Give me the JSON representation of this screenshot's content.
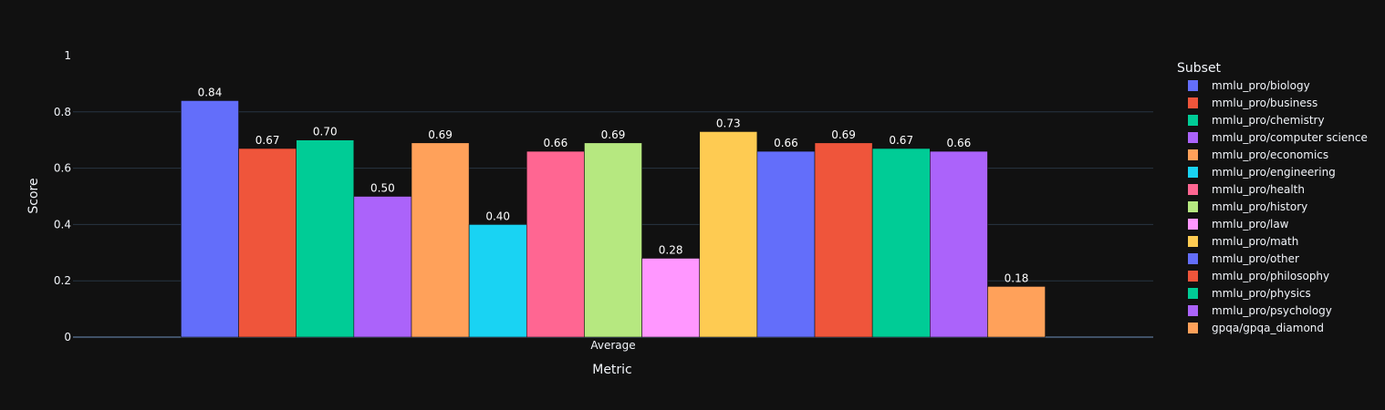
{
  "chart_data": {
    "type": "bar",
    "categories": [
      "Average"
    ],
    "xlabel": "Metric",
    "ylabel": "Score",
    "ylim": [
      0,
      1
    ],
    "yticks": [
      0,
      0.2,
      0.4,
      0.6,
      0.8,
      1
    ],
    "ytick_labels": [
      "0",
      "0.2",
      "0.4",
      "0.6",
      "0.8",
      "1"
    ],
    "grid": true,
    "legend_title": "Subset",
    "legend_position": "right",
    "background": "#111111",
    "series": [
      {
        "name": "mmlu_pro/biology",
        "value": 0.84,
        "label": "0.84",
        "color": "#636efa"
      },
      {
        "name": "mmlu_pro/business",
        "value": 0.67,
        "label": "0.67",
        "color": "#EF553B"
      },
      {
        "name": "mmlu_pro/chemistry",
        "value": 0.7,
        "label": "0.70",
        "color": "#00cc96"
      },
      {
        "name": "mmlu_pro/computer science",
        "value": 0.5,
        "label": "0.50",
        "color": "#ab63fa"
      },
      {
        "name": "mmlu_pro/economics",
        "value": 0.69,
        "label": "0.69",
        "color": "#FFA15A"
      },
      {
        "name": "mmlu_pro/engineering",
        "value": 0.4,
        "label": "0.40",
        "color": "#19d3f3"
      },
      {
        "name": "mmlu_pro/health",
        "value": 0.66,
        "label": "0.66",
        "color": "#FF6692"
      },
      {
        "name": "mmlu_pro/history",
        "value": 0.69,
        "label": "0.69",
        "color": "#B6E880"
      },
      {
        "name": "mmlu_pro/law",
        "value": 0.28,
        "label": "0.28",
        "color": "#FF97FF"
      },
      {
        "name": "mmlu_pro/math",
        "value": 0.73,
        "label": "0.73",
        "color": "#FECB52"
      },
      {
        "name": "mmlu_pro/other",
        "value": 0.66,
        "label": "0.66",
        "color": "#636efa"
      },
      {
        "name": "mmlu_pro/philosophy",
        "value": 0.69,
        "label": "0.69",
        "color": "#EF553B"
      },
      {
        "name": "mmlu_pro/physics",
        "value": 0.67,
        "label": "0.67",
        "color": "#00cc96"
      },
      {
        "name": "mmlu_pro/psychology",
        "value": 0.66,
        "label": "0.66",
        "color": "#ab63fa"
      },
      {
        "name": "gpqa/gpqa_diamond",
        "value": 0.18,
        "label": "0.18",
        "color": "#FFA15A"
      }
    ]
  }
}
